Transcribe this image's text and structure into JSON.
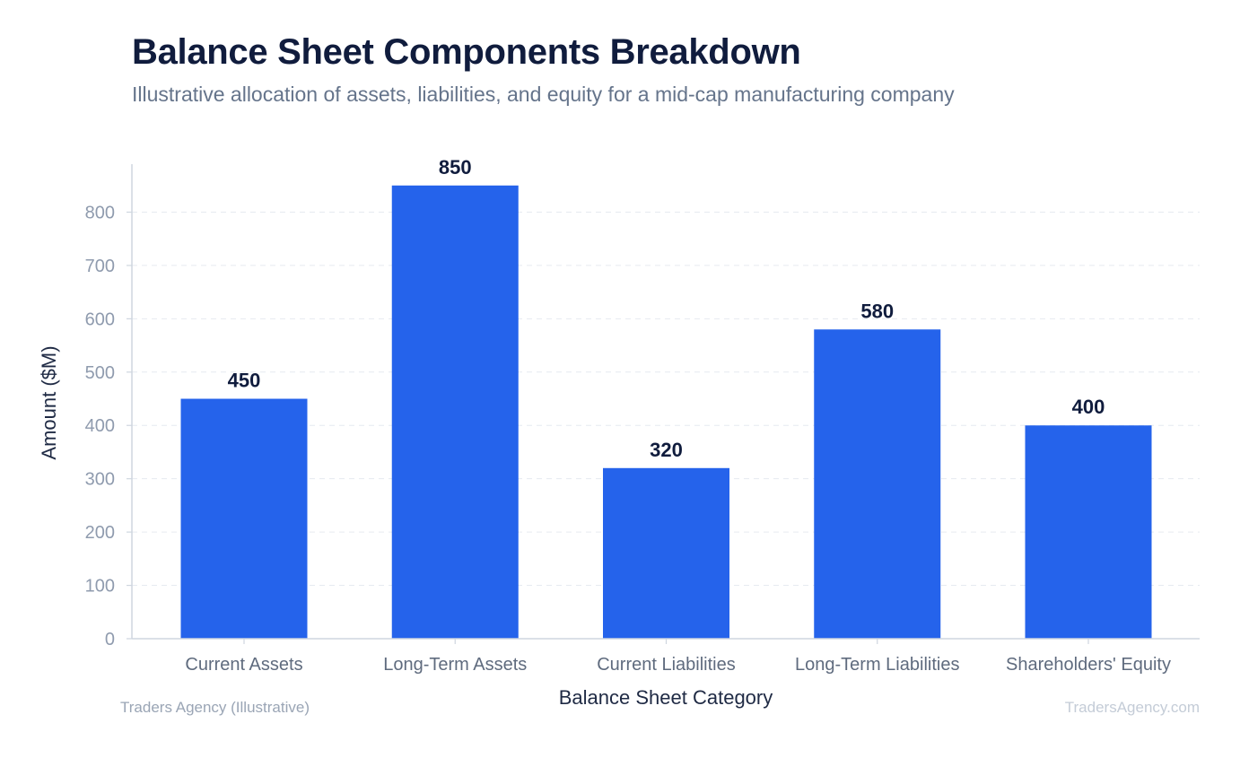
{
  "header": {
    "title": "Balance Sheet Components Breakdown",
    "subtitle": "Illustrative allocation of assets, liabilities, and equity for a mid-cap manufacturing company"
  },
  "footer": {
    "source": "Traders Agency (Illustrative)",
    "watermark": "TradersAgency.com"
  },
  "colors": {
    "bar": "#2563eb",
    "title": "#101c3d",
    "axis_text": "#8f9bae",
    "category_text": "#5f6b7e",
    "value_label": "#101c3d",
    "grid": "#e6eaf0"
  },
  "chart_data": {
    "type": "bar",
    "categories": [
      "Current Assets",
      "Long-Term Assets",
      "Current Liabilities",
      "Long-Term Liabilities",
      "Shareholders' Equity"
    ],
    "values": [
      450,
      850,
      320,
      580,
      400
    ],
    "title": "Balance Sheet Components Breakdown",
    "subtitle": "Illustrative allocation of assets, liabilities, and equity for a mid-cap manufacturing company",
    "xlabel": "Balance Sheet Category",
    "ylabel": "Amount ($M)",
    "ylim": [
      0,
      890
    ],
    "yticks": [
      0,
      100,
      200,
      300,
      400,
      500,
      600,
      700,
      800
    ],
    "grid": "horizontal dashed",
    "data_labels": true,
    "legend": "none"
  }
}
